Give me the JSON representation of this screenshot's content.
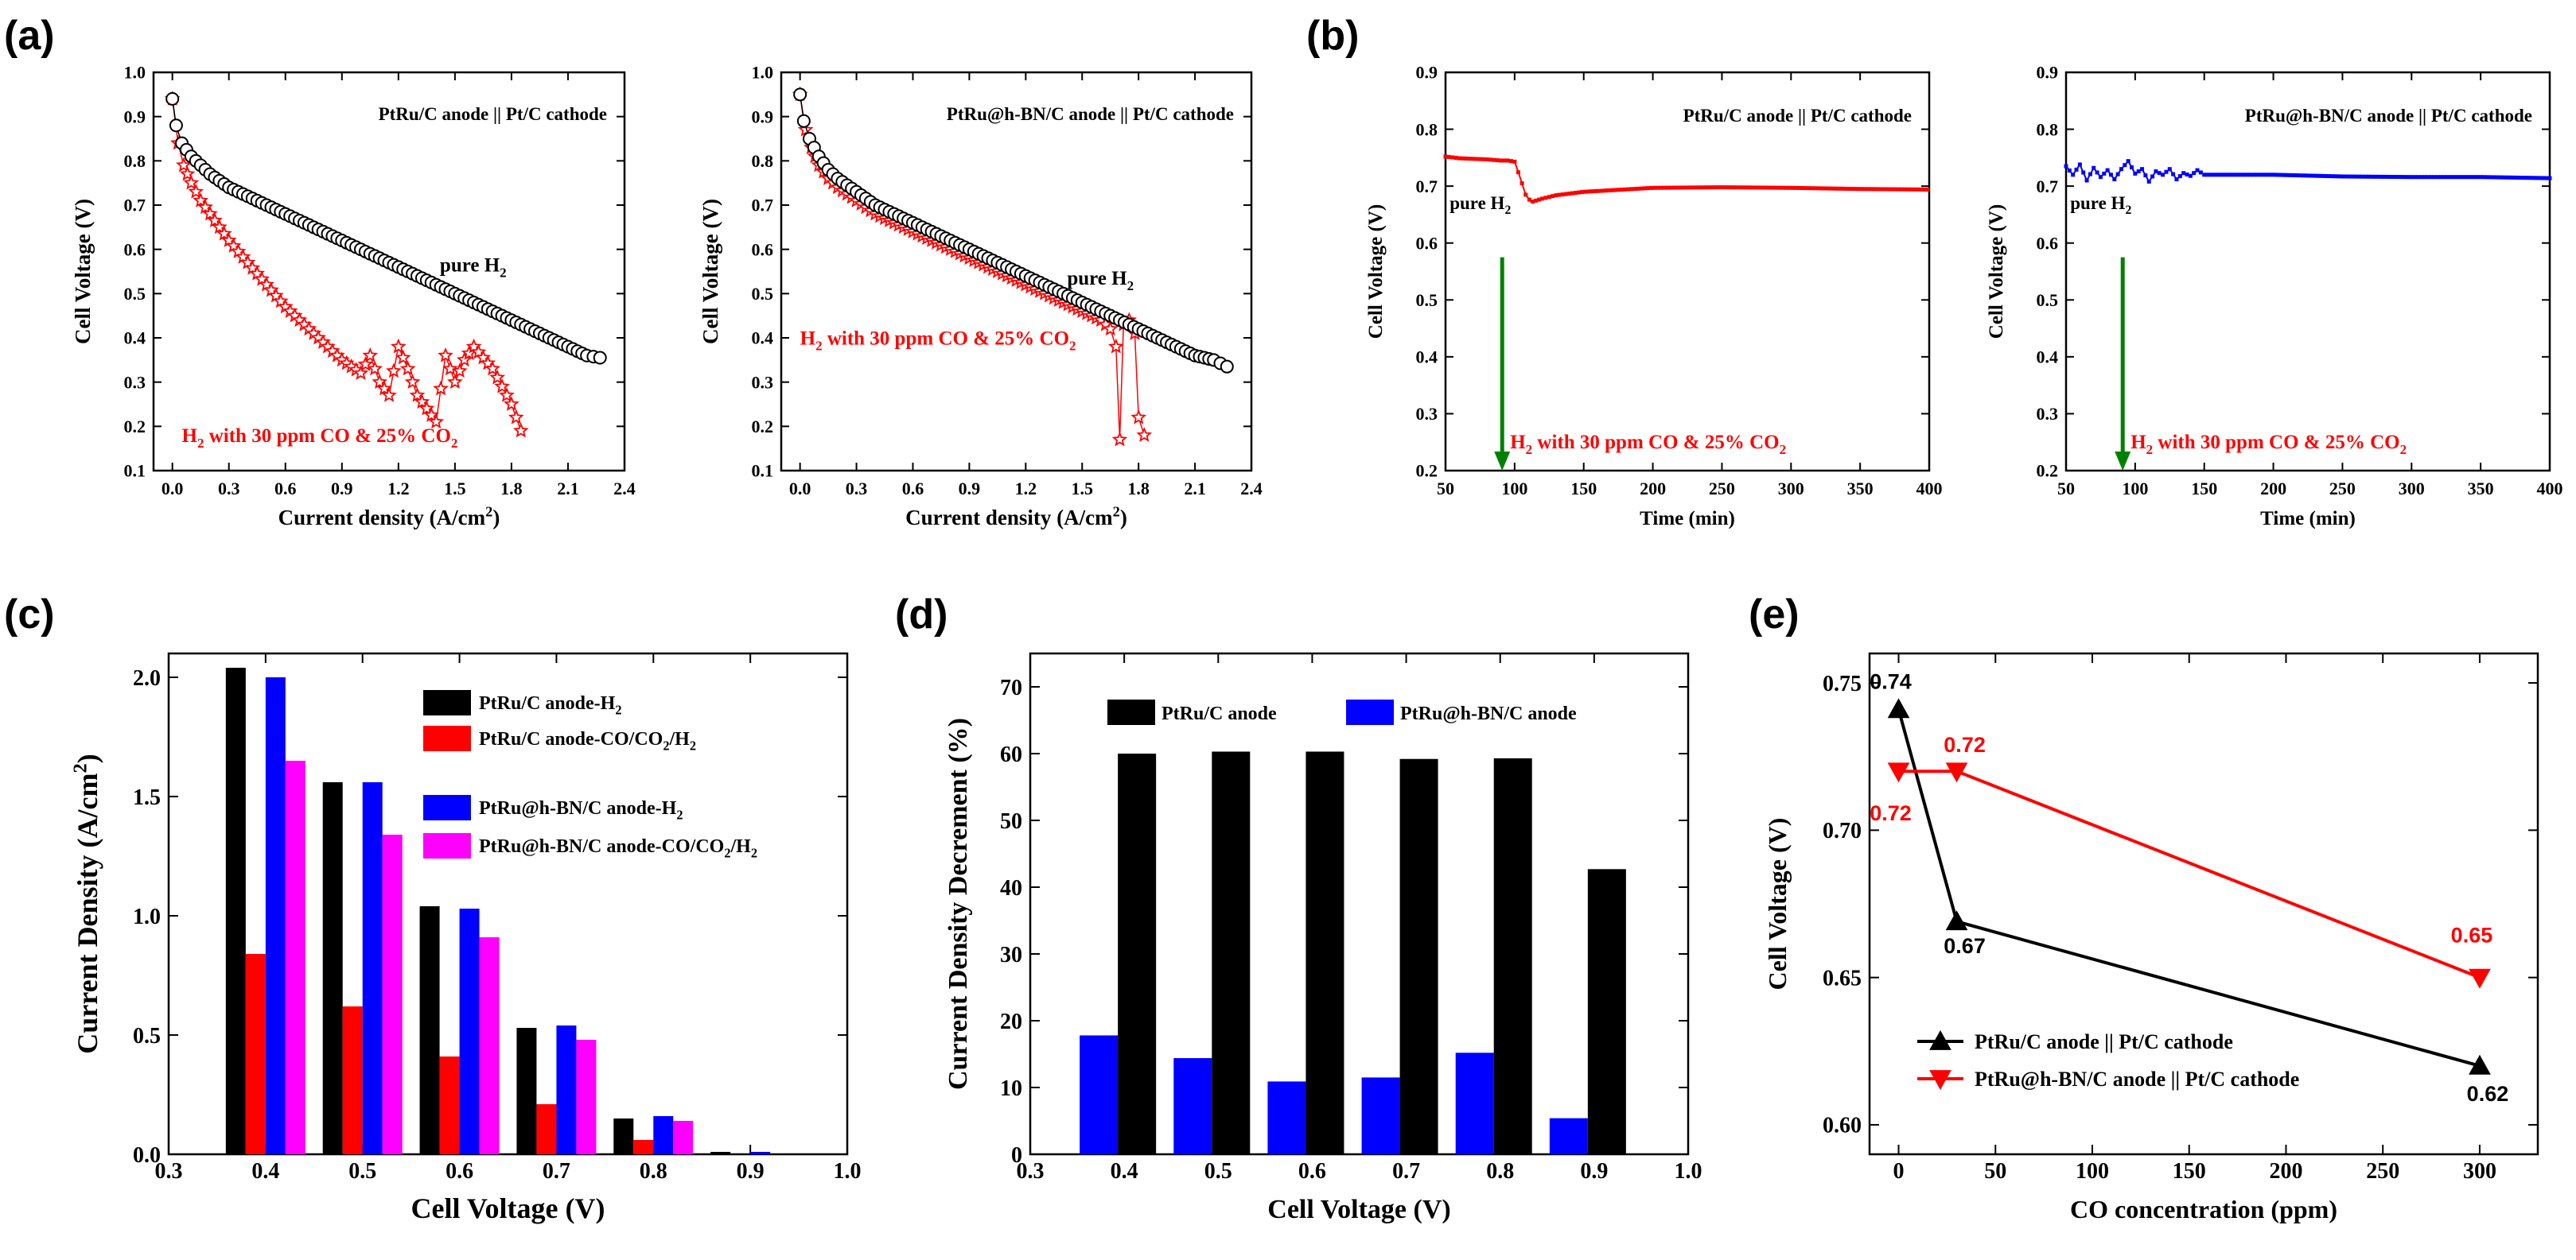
{
  "panel_letters": [
    "(a)",
    "(b)",
    "(c)",
    "(d)",
    "(e)"
  ],
  "colors": {
    "black": "#000000",
    "red": "#ff0000",
    "blue": "#0000ff",
    "magenta": "#ff00ff",
    "green": "#008000"
  },
  "chart_data": [
    {
      "id": "a1",
      "type": "scatter",
      "xlabel": "Current density (A/cm²)",
      "ylabel": "Cell Voltage (V)",
      "xlim": [
        -0.1,
        2.4
      ],
      "ylim": [
        0.1,
        1.0
      ],
      "xticks": [
        0.0,
        0.3,
        0.6,
        0.9,
        1.2,
        1.5,
        1.8,
        2.1,
        2.4
      ],
      "yticks": [
        0.1,
        0.2,
        0.3,
        0.4,
        0.5,
        0.6,
        0.7,
        0.8,
        0.9,
        1.0
      ],
      "title": "PtRu/C anode || Pt/C cathode",
      "series": [
        {
          "name": "pure H₂",
          "color": "#000000",
          "marker": "circle",
          "x": [
            0.0,
            0.02,
            0.05,
            0.1,
            0.15,
            0.2,
            0.3,
            0.4,
            0.5,
            0.6,
            0.7,
            0.8,
            0.9,
            1.0,
            1.1,
            1.2,
            1.3,
            1.4,
            1.5,
            1.6,
            1.7,
            1.8,
            1.9,
            2.0,
            2.1,
            2.2,
            2.27
          ],
          "y": [
            0.94,
            0.88,
            0.84,
            0.81,
            0.79,
            0.77,
            0.74,
            0.72,
            0.7,
            0.68,
            0.66,
            0.64,
            0.62,
            0.6,
            0.58,
            0.56,
            0.54,
            0.52,
            0.5,
            0.48,
            0.46,
            0.44,
            0.42,
            0.4,
            0.38,
            0.36,
            0.355
          ]
        },
        {
          "name": "H₂ with 30 ppm CO & 25% CO₂",
          "color": "#ff0000",
          "marker": "star",
          "x": [
            0.0,
            0.03,
            0.06,
            0.1,
            0.15,
            0.2,
            0.3,
            0.4,
            0.5,
            0.6,
            0.7,
            0.8,
            0.9,
            1.0,
            1.05,
            1.1,
            1.15,
            1.2,
            1.25,
            1.3,
            1.35,
            1.4,
            1.45,
            1.5,
            1.55,
            1.6,
            1.7,
            1.8,
            1.85
          ],
          "y": [
            0.94,
            0.84,
            0.79,
            0.75,
            0.71,
            0.68,
            0.62,
            0.57,
            0.52,
            0.47,
            0.43,
            0.39,
            0.35,
            0.32,
            0.36,
            0.3,
            0.27,
            0.38,
            0.33,
            0.27,
            0.24,
            0.21,
            0.36,
            0.3,
            0.35,
            0.38,
            0.33,
            0.25,
            0.19
          ]
        }
      ],
      "labels": [
        {
          "text": "pure H₂",
          "x": 1.42,
          "y": 0.55,
          "color": "#000000"
        }
      ],
      "red_label": "H₂ with 30 ppm CO & 25% CO₂"
    },
    {
      "id": "a2",
      "type": "scatter",
      "xlabel": "Current density (A/cm²)",
      "ylabel": "Cell Voltage (V)",
      "xlim": [
        -0.1,
        2.4
      ],
      "ylim": [
        0.1,
        1.0
      ],
      "xticks": [
        0.0,
        0.3,
        0.6,
        0.9,
        1.2,
        1.5,
        1.8,
        2.1,
        2.4
      ],
      "yticks": [
        0.1,
        0.2,
        0.3,
        0.4,
        0.5,
        0.6,
        0.7,
        0.8,
        0.9,
        1.0
      ],
      "title": "PtRu@h-BN/C anode || Pt/C cathode",
      "series": [
        {
          "name": "pure H₂",
          "color": "#000000",
          "marker": "circle",
          "x": [
            0.0,
            0.02,
            0.05,
            0.1,
            0.15,
            0.2,
            0.3,
            0.4,
            0.5,
            0.6,
            0.7,
            0.8,
            0.9,
            1.0,
            1.1,
            1.2,
            1.3,
            1.4,
            1.5,
            1.6,
            1.7,
            1.8,
            1.9,
            2.0,
            2.1,
            2.2,
            2.27
          ],
          "y": [
            0.95,
            0.89,
            0.85,
            0.81,
            0.78,
            0.76,
            0.73,
            0.7,
            0.68,
            0.66,
            0.64,
            0.62,
            0.6,
            0.58,
            0.56,
            0.54,
            0.52,
            0.5,
            0.48,
            0.46,
            0.44,
            0.42,
            0.4,
            0.38,
            0.36,
            0.35,
            0.335
          ]
        },
        {
          "name": "H₂ with 30 ppm CO & 25% CO₂",
          "color": "#ff0000",
          "marker": "star",
          "x": [
            0.0,
            0.03,
            0.06,
            0.1,
            0.15,
            0.2,
            0.3,
            0.4,
            0.5,
            0.6,
            0.7,
            0.8,
            0.9,
            1.0,
            1.1,
            1.2,
            1.3,
            1.4,
            1.5,
            1.6,
            1.65,
            1.68,
            1.7,
            1.72,
            1.75,
            1.78,
            1.8,
            1.83
          ],
          "y": [
            0.95,
            0.87,
            0.83,
            0.79,
            0.76,
            0.74,
            0.71,
            0.68,
            0.66,
            0.64,
            0.62,
            0.6,
            0.58,
            0.56,
            0.54,
            0.52,
            0.5,
            0.48,
            0.46,
            0.44,
            0.42,
            0.38,
            0.17,
            0.43,
            0.44,
            0.41,
            0.22,
            0.18
          ]
        }
      ],
      "labels": [
        {
          "text": "pure H₂",
          "x": 1.42,
          "y": 0.52,
          "color": "#000000"
        }
      ],
      "red_label": "H₂ with 30 ppm CO & 25% CO₂"
    },
    {
      "id": "b1",
      "type": "line",
      "xlabel": "Time (min)",
      "ylabel": "Cell Voltage (V)",
      "xlim": [
        50,
        400
      ],
      "ylim": [
        0.2,
        0.9
      ],
      "xticks": [
        50,
        100,
        150,
        200,
        250,
        300,
        350,
        400
      ],
      "yticks": [
        0.2,
        0.3,
        0.4,
        0.5,
        0.6,
        0.7,
        0.8,
        0.9
      ],
      "title": "PtRu/C anode || Pt/C cathode",
      "series": [
        {
          "name": "voltage",
          "color": "#ff0000",
          "x": [
            50,
            60,
            70,
            80,
            90,
            95,
            100,
            104,
            108,
            112,
            120,
            130,
            150,
            200,
            250,
            300,
            350,
            400
          ],
          "y": [
            0.752,
            0.749,
            0.748,
            0.747,
            0.745,
            0.745,
            0.743,
            0.715,
            0.685,
            0.672,
            0.678,
            0.684,
            0.69,
            0.697,
            0.698,
            0.697,
            0.695,
            0.694
          ]
        }
      ],
      "labels": [
        {
          "text": "pure H₂",
          "x": 53,
          "y": 0.66,
          "color": "#000000"
        }
      ],
      "arrow": {
        "x": 91,
        "y_from": 0.575,
        "y_to": 0.2,
        "color": "#008000"
      },
      "red_label": "H₂ with 30 ppm CO & 25% CO₂"
    },
    {
      "id": "b2",
      "type": "line",
      "xlabel": "Time (min)",
      "ylabel": "Cell Voltage (V)",
      "xlim": [
        50,
        400
      ],
      "ylim": [
        0.2,
        0.9
      ],
      "xticks": [
        50,
        100,
        150,
        200,
        250,
        300,
        350,
        400
      ],
      "yticks": [
        0.2,
        0.3,
        0.4,
        0.5,
        0.6,
        0.7,
        0.8,
        0.9
      ],
      "title": "PtRu@h-BN/C anode || Pt/C cathode",
      "series": [
        {
          "name": "voltage",
          "color": "#0000ff",
          "x": [
            50,
            55,
            60,
            65,
            70,
            75,
            80,
            85,
            90,
            95,
            100,
            105,
            110,
            115,
            120,
            125,
            130,
            135,
            140,
            145,
            150,
            200,
            250,
            300,
            350,
            400
          ],
          "y": [
            0.735,
            0.72,
            0.738,
            0.71,
            0.732,
            0.716,
            0.728,
            0.712,
            0.73,
            0.744,
            0.722,
            0.73,
            0.708,
            0.726,
            0.72,
            0.73,
            0.712,
            0.723,
            0.718,
            0.728,
            0.72,
            0.72,
            0.717,
            0.716,
            0.716,
            0.714
          ]
        }
      ],
      "labels": [
        {
          "text": "pure H₂",
          "x": 53,
          "y": 0.66,
          "color": "#000000"
        }
      ],
      "arrow": {
        "x": 91,
        "y_from": 0.575,
        "y_to": 0.2,
        "color": "#008000"
      },
      "red_label": "H₂ with 30 ppm CO & 25% CO₂"
    },
    {
      "id": "c",
      "type": "bar",
      "xlabel": "Cell Voltage (V)",
      "ylabel": "Current Density (A/cm²)",
      "xlim": [
        0.3,
        1.0
      ],
      "ylim": [
        0,
        2.1
      ],
      "xticks": [
        0.3,
        0.4,
        0.5,
        0.6,
        0.7,
        0.8,
        0.9,
        1.0
      ],
      "yticks": [
        0.0,
        0.5,
        1.0,
        1.5,
        2.0
      ],
      "categories": [
        0.4,
        0.5,
        0.6,
        0.7,
        0.8,
        0.9
      ],
      "series": [
        {
          "name": "PtRu/C anode-H₂",
          "color": "#000000",
          "values": [
            2.04,
            1.56,
            1.04,
            0.53,
            0.15,
            0.01
          ]
        },
        {
          "name": "PtRu/C anode-CO/CO₂/H₂",
          "color": "#ff0000",
          "values": [
            0.84,
            0.62,
            0.41,
            0.21,
            0.06,
            0.0
          ]
        },
        {
          "name": "PtRu@h-BN/C anode-H₂",
          "color": "#0000ff",
          "values": [
            2.0,
            1.56,
            1.03,
            0.54,
            0.16,
            0.01
          ]
        },
        {
          "name": "PtRu@h-BN/C anode-CO/CO₂/H₂",
          "color": "#ff00ff",
          "values": [
            1.65,
            1.34,
            0.91,
            0.48,
            0.14,
            0.0
          ]
        }
      ]
    },
    {
      "id": "d",
      "type": "bar",
      "xlabel": "Cell Voltage (V)",
      "ylabel": "Current Density Decrement (%)",
      "xlim": [
        0.3,
        1.0
      ],
      "ylim": [
        0,
        75
      ],
      "xticks": [
        0.3,
        0.4,
        0.5,
        0.6,
        0.7,
        0.8,
        0.9,
        1.0
      ],
      "yticks": [
        0,
        10,
        20,
        30,
        40,
        50,
        60,
        70
      ],
      "categories": [
        0.4,
        0.5,
        0.6,
        0.7,
        0.8,
        0.9
      ],
      "series": [
        {
          "name": "PtRu@h-BN/C anode",
          "color": "#0000ff",
          "values": [
            17.8,
            14.4,
            10.9,
            11.5,
            15.2,
            5.4
          ]
        },
        {
          "name": "PtRu/C anode",
          "color": "#000000",
          "values": [
            60.0,
            60.3,
            60.3,
            59.2,
            59.3,
            42.7
          ]
        }
      ]
    },
    {
      "id": "e",
      "type": "line",
      "xlabel": "CO concentration (ppm)",
      "ylabel": "Cell Voltage (V)",
      "xlim": [
        -15,
        330
      ],
      "ylim": [
        0.59,
        0.76
      ],
      "xticks": [
        0,
        50,
        100,
        150,
        200,
        250,
        300
      ],
      "yticks": [
        0.6,
        0.65,
        0.7,
        0.75
      ],
      "series": [
        {
          "name": "PtRu/C anode || Pt/C cathode",
          "color": "#000000",
          "marker": "tri-up",
          "x": [
            0,
            30,
            300
          ],
          "y": [
            0.741,
            0.669,
            0.62
          ]
        },
        {
          "name": "PtRu@h-BN/C anode || Pt/C cathode",
          "color": "#ff0000",
          "marker": "tri-down",
          "x": [
            0,
            30,
            300
          ],
          "y": [
            0.72,
            0.72,
            0.65
          ]
        }
      ],
      "data_labels": [
        {
          "text": "0.74",
          "color": "#000000"
        },
        {
          "text": "0.67",
          "color": "#000000"
        },
        {
          "text": "0.62",
          "color": "#000000"
        },
        {
          "text": "0.72",
          "color": "#ff0000"
        },
        {
          "text": "0.72",
          "color": "#ff0000"
        },
        {
          "text": "0.65",
          "color": "#ff0000"
        }
      ]
    }
  ]
}
